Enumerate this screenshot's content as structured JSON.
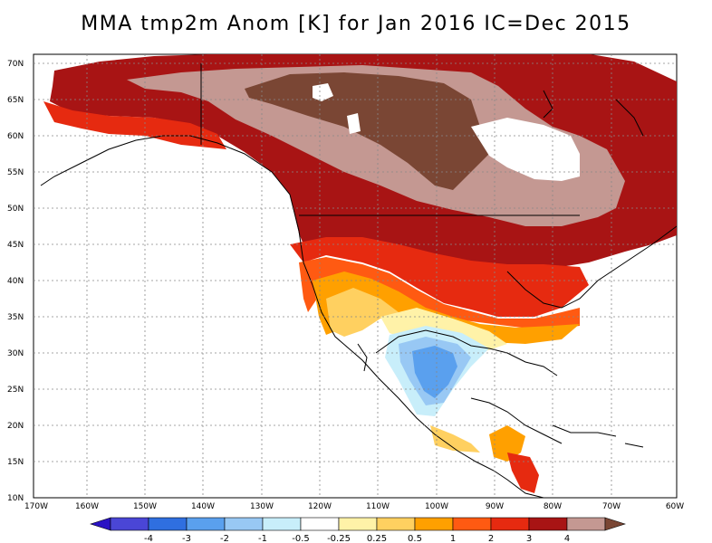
{
  "title": "MMA tmp2m Anom [K] for Jan 2016 IC=Dec 2015",
  "map": {
    "lat_labels": [
      "70N",
      "65N",
      "60N",
      "55N",
      "50N",
      "45N",
      "40N",
      "35N",
      "30N",
      "25N",
      "20N",
      "15N",
      "10N"
    ],
    "lon_labels": [
      "170W",
      "160W",
      "150W",
      "140W",
      "130W",
      "120W",
      "110W",
      "100W",
      "90W",
      "80W",
      "70W",
      "60W"
    ]
  },
  "legend": {
    "ticks": [
      "-4",
      "-3",
      "-2",
      "-1",
      "-0.5",
      "-0.25",
      "0.25",
      "0.5",
      "1",
      "2",
      "3",
      "4"
    ],
    "colors": [
      "#2a12c4",
      "#4a46d6",
      "#2f6fe0",
      "#5aa0ee",
      "#98c8f4",
      "#c8eefa",
      "#ffffff",
      "#fff2a8",
      "#ffd060",
      "#ffa000",
      "#ff5a12",
      "#e62a10",
      "#a81414",
      "#c49892",
      "#7a4634"
    ]
  },
  "colors": {
    "warm_3_4": "#a81414",
    "warm_2_3": "#e62a10",
    "warm_1_2": "#ff5a12",
    "warm_05_1": "#ffa000",
    "warm_025_05": "#ffd060",
    "warm_0_025": "#fff2a8",
    "cool_025": "#c8eefa",
    "cool_05": "#98c8f4",
    "cool_1": "#5aa0ee",
    "rose": "#c49892",
    "brown": "#7a4634"
  }
}
